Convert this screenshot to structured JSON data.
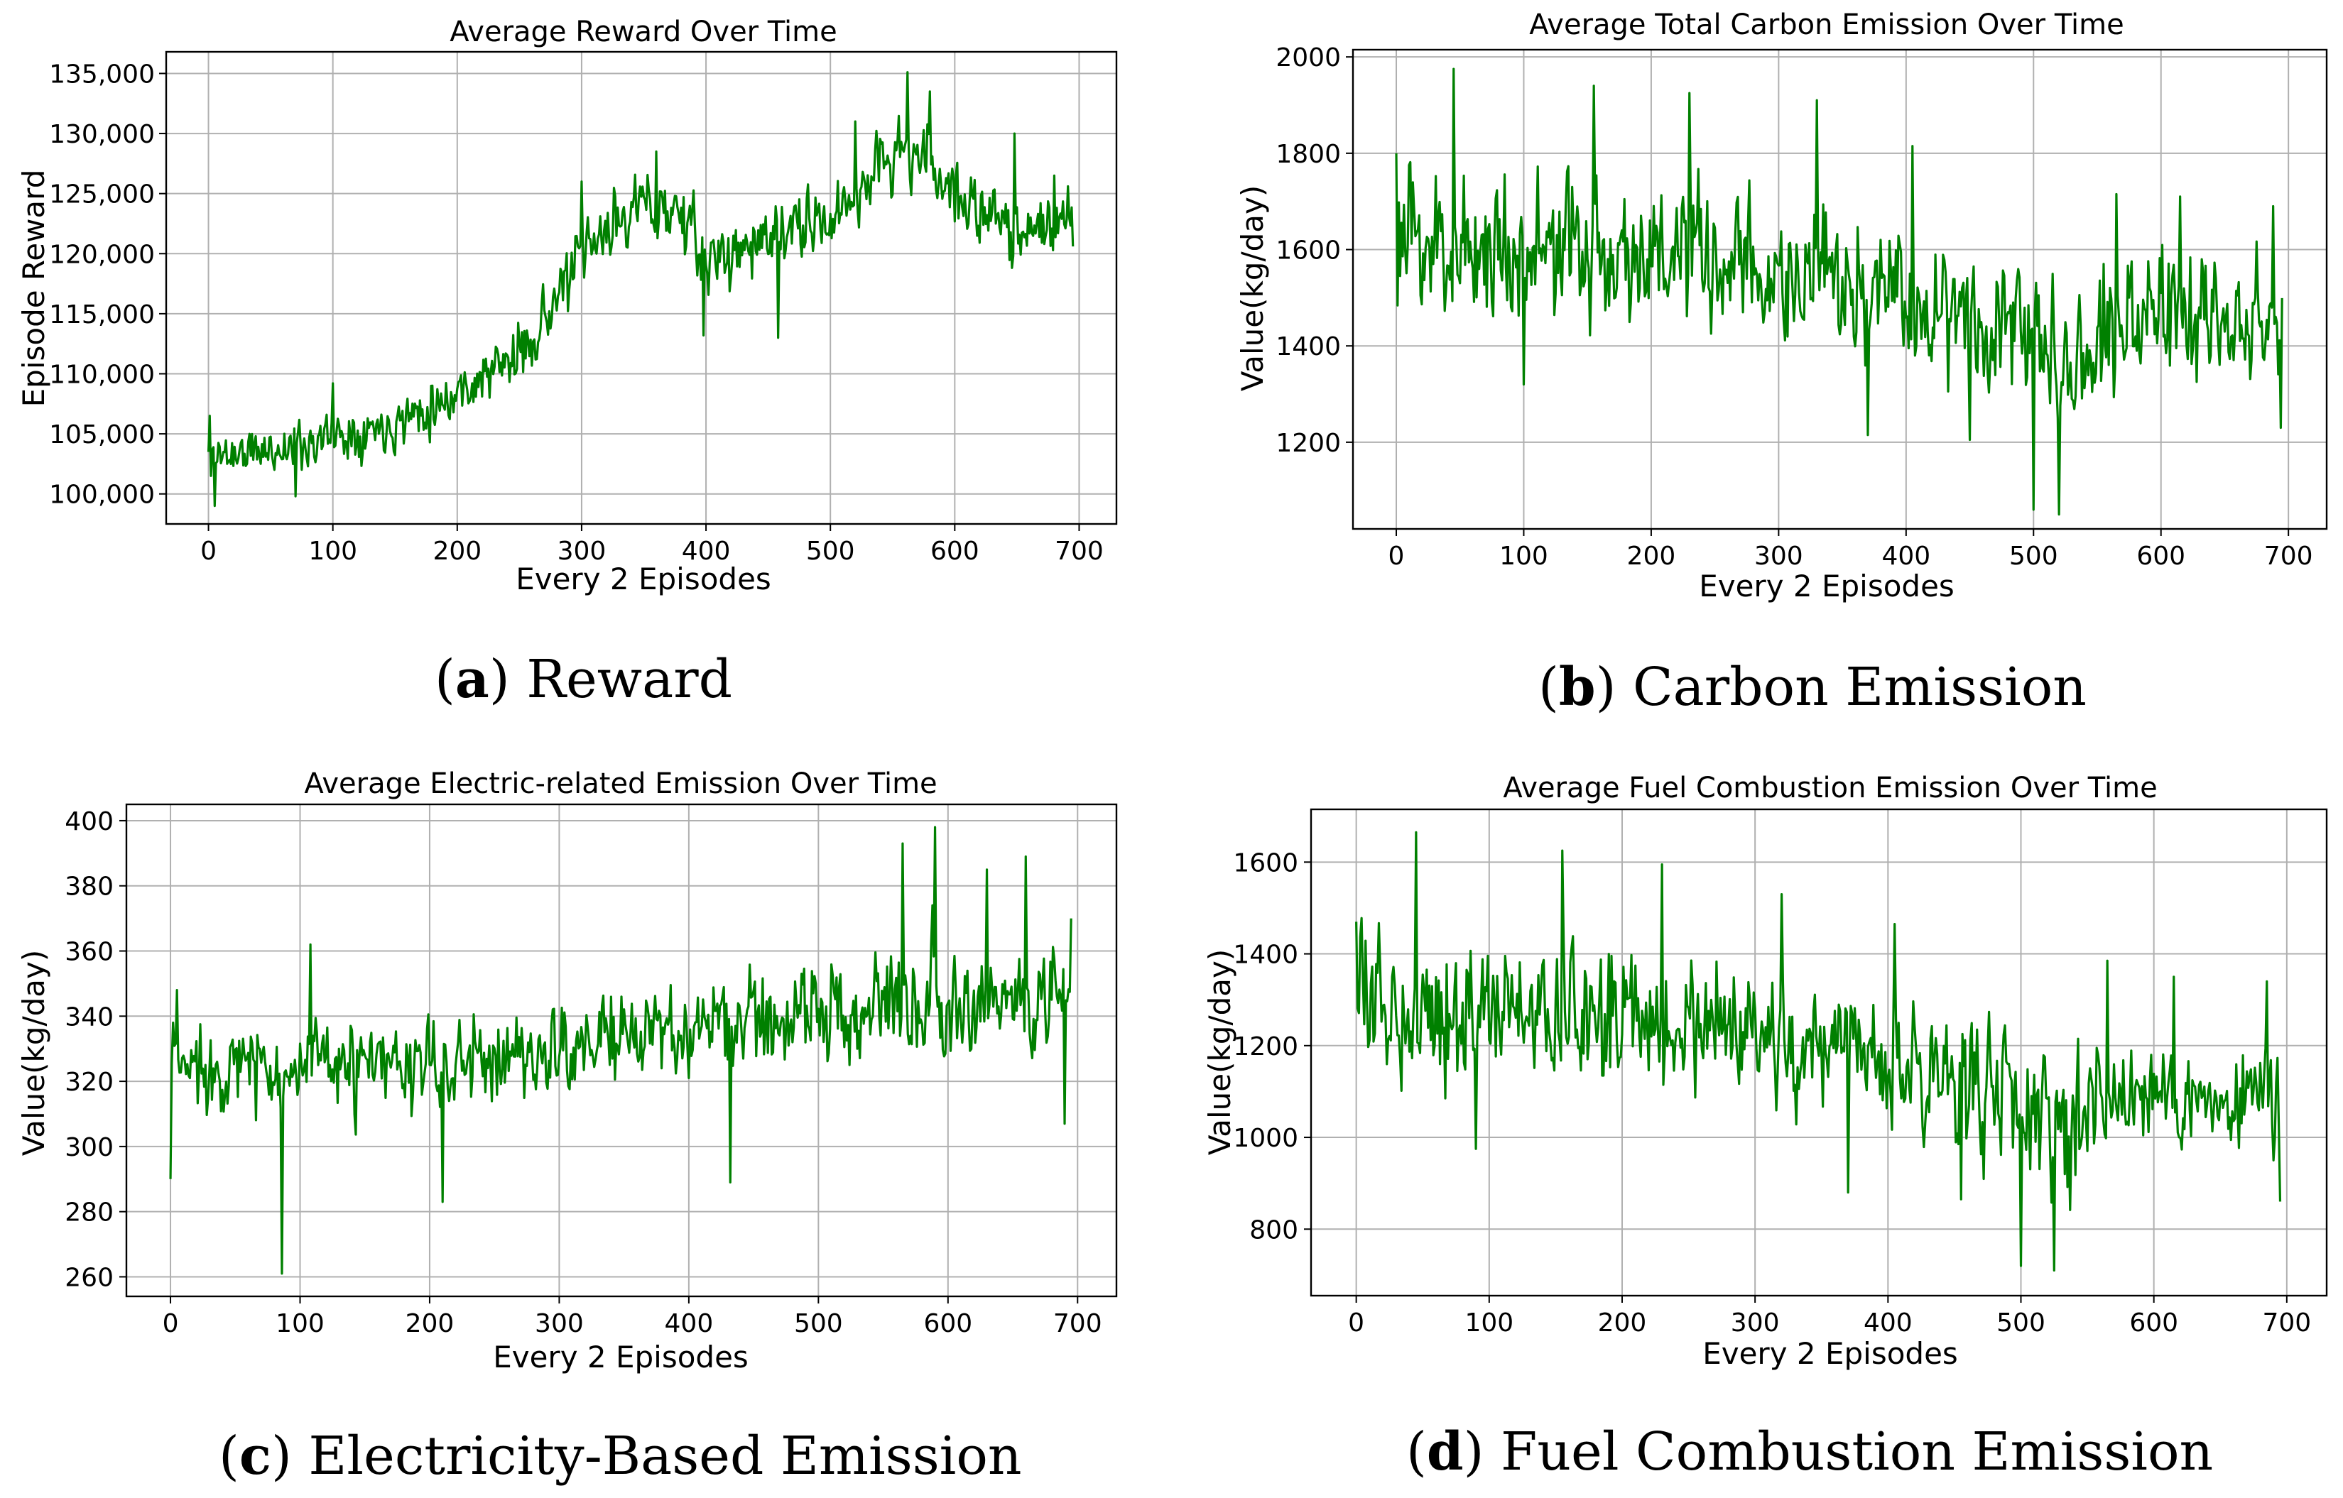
{
  "colors": {
    "line": "#008000",
    "grid": "#b0b0b0"
  },
  "chart_data": [
    {
      "id": "a",
      "type": "line",
      "title": "Average Reward Over Time",
      "xlabel": "Every 2 Episodes",
      "ylabel": "Episode Reward",
      "xlim": [
        -34,
        730
      ],
      "ylim": [
        97500,
        136800
      ],
      "xticks": [
        0,
        100,
        200,
        300,
        400,
        500,
        600,
        700
      ],
      "xtick_labels": [
        "0",
        "100",
        "200",
        "300",
        "400",
        "500",
        "600",
        "700"
      ],
      "yticks": [
        100000,
        105000,
        110000,
        115000,
        120000,
        125000,
        130000,
        135000
      ],
      "ytick_labels": [
        "100,000",
        "105,000",
        "110,000",
        "115,000",
        "120,000",
        "125,000",
        "130,000",
        "135,000"
      ],
      "grid": true,
      "caption_letter": "a",
      "caption_text": "Reward",
      "series": [
        {
          "name": "Average Reward",
          "n": 696,
          "trend_x": [
            0,
            50,
            100,
            150,
            200,
            250,
            300,
            340,
            380,
            400,
            450,
            500,
            540,
            560,
            580,
            620,
            660,
            695
          ],
          "trend_y": [
            103200,
            103600,
            104800,
            106000,
            108500,
            111500,
            119500,
            124000,
            123500,
            119000,
            121500,
            122500,
            127500,
            128500,
            127500,
            123000,
            122000,
            122500
          ],
          "noise": [
            1700,
            1700,
            1700,
            1800,
            1900,
            2000,
            2200,
            2300,
            2300,
            2300,
            2300,
            2300,
            2400,
            2400,
            2400,
            2300,
            2200,
            2200
          ],
          "seed": 11,
          "spikes": [
            [
              1,
              106500
            ],
            [
              2,
              101500
            ],
            [
              5,
              99000
            ],
            [
              70,
              99800
            ],
            [
              100,
              109200
            ],
            [
              300,
              126000
            ],
            [
              360,
              128500
            ],
            [
              398,
              113200
            ],
            [
              458,
              113000
            ],
            [
              520,
              131000
            ],
            [
              562,
              135100
            ],
            [
              580,
              133500
            ],
            [
              648,
              130000
            ],
            [
              680,
              126500
            ],
            [
              695,
              120600
            ]
          ]
        }
      ]
    },
    {
      "id": "b",
      "type": "line",
      "title": "Average Total Carbon Emission Over Time",
      "xlabel": "Every 2 Episodes",
      "ylabel": "Value(kg/day)",
      "xlim": [
        -34,
        730
      ],
      "ylim": [
        1020,
        2015
      ],
      "xticks": [
        0,
        100,
        200,
        300,
        400,
        500,
        600,
        700
      ],
      "xtick_labels": [
        "0",
        "100",
        "200",
        "300",
        "400",
        "500",
        "600",
        "700"
      ],
      "yticks": [
        1200,
        1400,
        1600,
        1800,
        2000
      ],
      "ytick_labels": [
        "1200",
        "1400",
        "1600",
        "1800",
        "2000"
      ],
      "grid": true,
      "caption_letter": "b",
      "caption_text": "Carbon Emission",
      "series": [
        {
          "name": "Total Carbon Emission",
          "n": 696,
          "trend_x": [
            0,
            100,
            200,
            300,
            400,
            480,
            520,
            560,
            600,
            695
          ],
          "trend_y": [
            1610,
            1600,
            1590,
            1545,
            1495,
            1460,
            1390,
            1450,
            1470,
            1450
          ],
          "noise": [
            130,
            125,
            120,
            120,
            115,
            120,
            130,
            120,
            110,
            110
          ],
          "seed": 23,
          "spikes": [
            [
              0,
              1800
            ],
            [
              45,
              1975
            ],
            [
              100,
              1320
            ],
            [
              155,
              1940
            ],
            [
              230,
              1925
            ],
            [
              330,
              1910
            ],
            [
              370,
              1215
            ],
            [
              405,
              1815
            ],
            [
              450,
              1205
            ],
            [
              500,
              1060
            ],
            [
              520,
              1050
            ],
            [
              565,
              1715
            ],
            [
              615,
              1710
            ],
            [
              688,
              1690
            ],
            [
              694,
              1230
            ]
          ]
        }
      ]
    },
    {
      "id": "c",
      "type": "line",
      "title": "Average Electric-related Emission Over Time",
      "xlabel": "Every 2 Episodes",
      "ylabel": "Value(kg/day)",
      "xlim": [
        -34,
        730
      ],
      "ylim": [
        254,
        405
      ],
      "xticks": [
        0,
        100,
        200,
        300,
        400,
        500,
        600,
        700
      ],
      "xtick_labels": [
        "0",
        "100",
        "200",
        "300",
        "400",
        "500",
        "600",
        "700"
      ],
      "yticks": [
        260,
        280,
        300,
        320,
        340,
        360,
        380,
        400
      ],
      "ytick_labels": [
        "260",
        "280",
        "300",
        "320",
        "340",
        "360",
        "380",
        "400"
      ],
      "grid": true,
      "caption_letter": "c",
      "caption_text": "Electricity-Based Emission",
      "series": [
        {
          "name": "Electric-related Emission",
          "n": 696,
          "trend_x": [
            0,
            100,
            200,
            300,
            400,
            500,
            600,
            695
          ],
          "trend_y": [
            325,
            324,
            324,
            330,
            336,
            341,
            347,
            343
          ],
          "noise": [
            11,
            11,
            11,
            12,
            12,
            13,
            14,
            14
          ],
          "seed": 37,
          "spikes": [
            [
              0,
              290
            ],
            [
              2,
              338
            ],
            [
              5,
              348
            ],
            [
              86,
              261
            ],
            [
              108,
              362
            ],
            [
              210,
              283
            ],
            [
              432,
              289
            ],
            [
              565,
              393
            ],
            [
              588,
              374
            ],
            [
              590,
              398
            ],
            [
              630,
              385
            ],
            [
              660,
              389
            ],
            [
              690,
              307
            ],
            [
              695,
              370
            ]
          ]
        }
      ]
    },
    {
      "id": "d",
      "type": "line",
      "title": "Average Fuel Combustion Emission Over Time",
      "xlabel": "Every 2 Episodes",
      "ylabel": "Value(kg/day)",
      "xlim": [
        -34,
        730
      ],
      "ylim": [
        655,
        1715
      ],
      "xticks": [
        0,
        100,
        200,
        300,
        400,
        500,
        600,
        700
      ],
      "xtick_labels": [
        "0",
        "100",
        "200",
        "300",
        "400",
        "500",
        "600",
        "700"
      ],
      "yticks": [
        800,
        1000,
        1200,
        1400,
        1600
      ],
      "ytick_labels": [
        "800",
        "1000",
        "1200",
        "1400",
        "1600"
      ],
      "grid": true,
      "caption_letter": "d",
      "caption_text": "Fuel Combustion Emission",
      "series": [
        {
          "name": "Fuel Combustion Emission",
          "n": 696,
          "trend_x": [
            0,
            100,
            200,
            300,
            400,
            480,
            520,
            560,
            600,
            695
          ],
          "trend_y": [
            1290,
            1275,
            1265,
            1215,
            1160,
            1110,
            1020,
            1090,
            1100,
            1080
          ],
          "noise": [
            125,
            120,
            115,
            115,
            110,
            115,
            125,
            115,
            105,
            105
          ],
          "seed": 53,
          "spikes": [
            [
              0,
              1470
            ],
            [
              45,
              1665
            ],
            [
              90,
              975
            ],
            [
              155,
              1625
            ],
            [
              230,
              1595
            ],
            [
              320,
              1530
            ],
            [
              370,
              880
            ],
            [
              405,
              1465
            ],
            [
              455,
              865
            ],
            [
              500,
              720
            ],
            [
              525,
              710
            ],
            [
              565,
              1385
            ],
            [
              615,
              1350
            ],
            [
              685,
              1340
            ],
            [
              695,
              860
            ]
          ]
        }
      ]
    }
  ]
}
